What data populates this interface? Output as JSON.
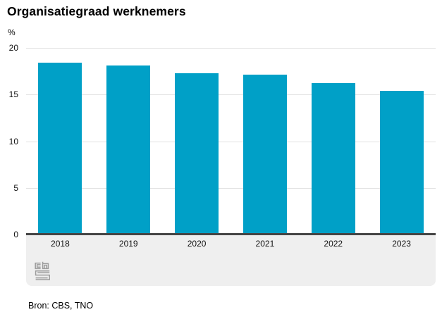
{
  "chart_data": {
    "type": "bar",
    "title": "Organisatiegraad werknemers",
    "unit_label": "%",
    "categories": [
      "2018",
      "2019",
      "2020",
      "2021",
      "2022",
      "2023"
    ],
    "values": [
      18.4,
      18.1,
      17.3,
      17.1,
      16.2,
      15.4
    ],
    "xlabel": "",
    "ylabel": "%",
    "ylim": [
      0,
      20
    ],
    "yticks": [
      0,
      5,
      10,
      15,
      20
    ],
    "grid": true,
    "legend": "none",
    "bar_color": "#00a0c7",
    "gridline_color": "#e2e2e2",
    "axis_line_color": "#454545",
    "band_color": "#efefef"
  },
  "footer": {
    "source": "Bron: CBS, TNO"
  },
  "logo": {
    "name": "cbs-logo",
    "color": "#9c9c9c"
  }
}
